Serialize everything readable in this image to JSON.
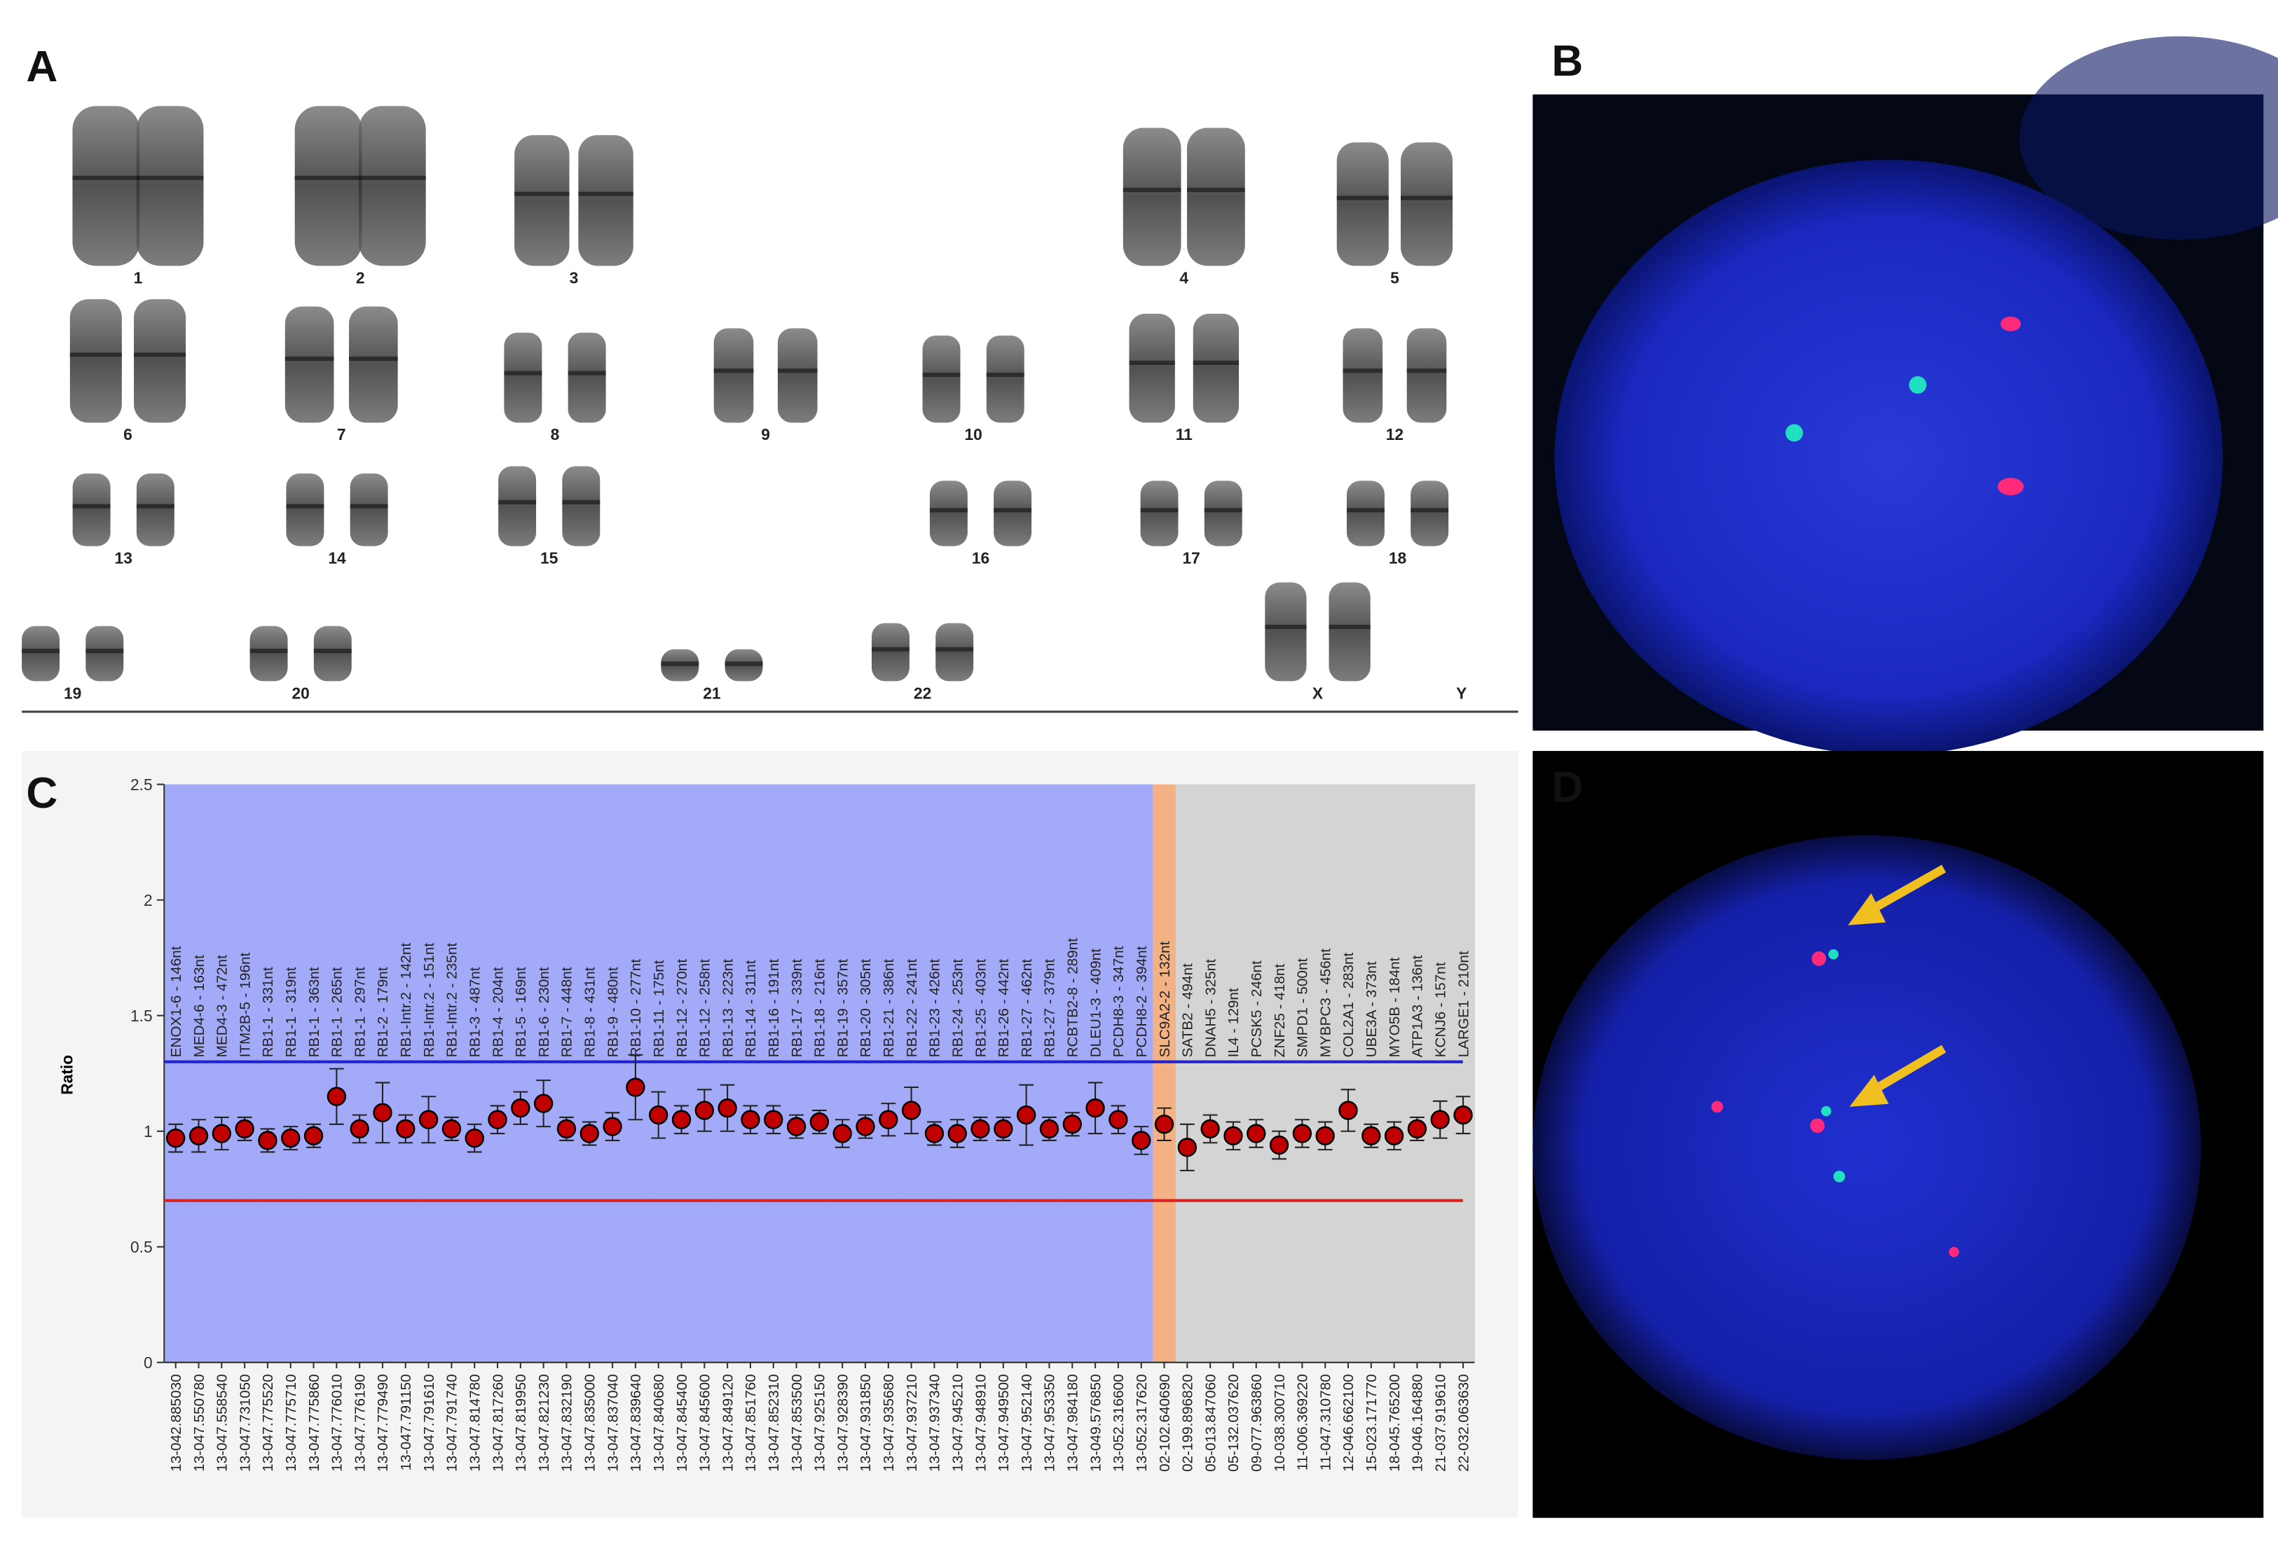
{
  "panels": {
    "labels": [
      "A",
      "B",
      "C",
      "D"
    ]
  },
  "karyotype": {
    "labels": [
      "1",
      "2",
      "3",
      "4",
      "5",
      "6",
      "7",
      "8",
      "9",
      "10",
      "11",
      "12",
      "13",
      "14",
      "15",
      "16",
      "17",
      "18",
      "19",
      "20",
      "21",
      "22",
      "X",
      "Y"
    ]
  },
  "chart_data": {
    "type": "errorbar",
    "ylabel": "Ratio",
    "ylim": [
      0,
      2.5
    ],
    "yticks": [
      0,
      0.5,
      1,
      1.5,
      2,
      2.5
    ],
    "categories": [
      "13-042.885030",
      "13-047.550780",
      "13-047.558540",
      "13-047.731050",
      "13-047.775520",
      "13-047.775710",
      "13-047.775860",
      "13-047.776010",
      "13-047.776190",
      "13-047.779490",
      "13-047.791150",
      "13-047.791610",
      "13-047.791740",
      "13-047.814780",
      "13-047.817260",
      "13-047.819950",
      "13-047.821230",
      "13-047.832190",
      "13-047.835000",
      "13-047.837040",
      "13-047.839640",
      "13-047.840680",
      "13-047.845400",
      "13-047.845600",
      "13-047.849120",
      "13-047.851760",
      "13-047.852310",
      "13-047.853500",
      "13-047.925150",
      "13-047.928390",
      "13-047.931850",
      "13-047.935680",
      "13-047.937210",
      "13-047.937340",
      "13-047.945210",
      "13-047.948910",
      "13-047.949500",
      "13-047.952140",
      "13-047.953350",
      "13-047.984180",
      "13-049.576850",
      "13-052.316600",
      "13-052.317620",
      "02-102.640690",
      "02-199.896820",
      "05-013.847060",
      "05-132.037620",
      "09-077.963860",
      "10-038.300710",
      "11-006.369220",
      "11-047.310780",
      "12-046.662100",
      "15-023.171770",
      "18-045.765200",
      "19-046.164880",
      "21-037.919610",
      "22-032.063630"
    ],
    "probes": [
      "ENOX1-6 - 146nt",
      "MED4-6 - 163nt",
      "MED4-3 - 472nt",
      "ITM2B-5 - 196nt",
      "RB1-1 - 331nt",
      "RB1-1 - 319nt",
      "RB1-1 - 363nt",
      "RB1-1 - 265nt",
      "RB1-1 - 297nt",
      "RB1-2 - 179nt",
      "RB1-Intr.2 - 142nt",
      "RB1-Intr.2 - 151nt",
      "RB1-Intr.2 - 235nt",
      "RB1-3 - 487nt",
      "RB1-4 - 204nt",
      "RB1-5 - 169nt",
      "RB1-6 - 230nt",
      "RB1-7 - 448nt",
      "RB1-8 - 431nt",
      "RB1-9 - 480nt",
      "RB1-10 - 277nt",
      "RB1-11 - 175nt",
      "RB1-12 - 270nt",
      "RB1-12 - 258nt",
      "RB1-13 - 223nt",
      "RB1-14 - 311nt",
      "RB1-16 - 191nt",
      "RB1-17 - 339nt",
      "RB1-18 - 216nt",
      "RB1-19 - 357nt",
      "RB1-20 - 305nt",
      "RB1-21 - 386nt",
      "RB1-22 - 241nt",
      "RB1-23 - 426nt",
      "RB1-24 - 253nt",
      "RB1-25 - 403nt",
      "RB1-26 - 442nt",
      "RB1-27 - 462nt",
      "RB1-27 - 379nt",
      "RCBTB2-8 - 289nt",
      "DLEU1-3 - 409nt",
      "PCDH8-3 - 347nt",
      "PCDH8-2 - 394nt",
      "SLC9A2-2 - 132nt",
      "SATB2 - 494nt",
      "DNAH5 - 325nt",
      "IL4 - 129nt",
      "PCSK5 - 246nt",
      "ZNF25 - 418nt",
      "SMPD1 - 500nt",
      "MYBPC3 - 456nt",
      "COL2A1 - 283nt",
      "UBE3A - 373nt",
      "MYO5B - 184nt",
      "ATP1A3 - 136nt",
      "KCNJ6 - 157nt",
      "LARGE1 - 210nt"
    ],
    "values": [
      0.97,
      0.98,
      0.99,
      1.01,
      0.96,
      0.97,
      0.98,
      1.15,
      1.01,
      1.08,
      1.01,
      1.05,
      1.01,
      0.97,
      1.05,
      1.1,
      1.12,
      1.01,
      0.99,
      1.02,
      1.19,
      1.07,
      1.05,
      1.09,
      1.1,
      1.05,
      1.05,
      1.02,
      1.04,
      0.99,
      1.02,
      1.05,
      1.09,
      0.99,
      0.99,
      1.01,
      1.01,
      1.07,
      1.01,
      1.03,
      1.1,
      1.05,
      0.96,
      1.03,
      0.93,
      1.01,
      0.98,
      0.99,
      0.94,
      0.99,
      0.98,
      1.09,
      0.98,
      0.98,
      1.01,
      1.05,
      1.07
    ],
    "errors": [
      0.06,
      0.07,
      0.07,
      0.05,
      0.05,
      0.05,
      0.05,
      0.12,
      0.06,
      0.13,
      0.06,
      0.1,
      0.05,
      0.06,
      0.06,
      0.07,
      0.1,
      0.05,
      0.05,
      0.06,
      0.14,
      0.1,
      0.06,
      0.09,
      0.1,
      0.06,
      0.06,
      0.05,
      0.05,
      0.06,
      0.05,
      0.07,
      0.1,
      0.05,
      0.06,
      0.05,
      0.05,
      0.13,
      0.05,
      0.05,
      0.11,
      0.06,
      0.06,
      0.07,
      0.1,
      0.06,
      0.06,
      0.06,
      0.06,
      0.06,
      0.06,
      0.09,
      0.05,
      0.06,
      0.05,
      0.08,
      0.08
    ],
    "point_color": "#c00000",
    "thresholds": [
      {
        "value": 1.3,
        "color": "#2222cc"
      },
      {
        "value": 0.7,
        "color": "#dd2222"
      }
    ],
    "background_colors": [
      "#a3aaf7",
      "#a3aaf7",
      "#a3aaf7",
      "#a3aaf7",
      "#a3aaf7",
      "#a3aaf7",
      "#a3aaf7",
      "#a3aaf7",
      "#a3aaf7",
      "#a3aaf7",
      "#a3aaf7",
      "#a3aaf7",
      "#a3aaf7",
      "#a3aaf7",
      "#a3aaf7",
      "#a3aaf7",
      "#a3aaf7",
      "#a3aaf7",
      "#a3aaf7",
      "#a3aaf7",
      "#a3aaf7",
      "#a3aaf7",
      "#a3aaf7",
      "#a3aaf7",
      "#a3aaf7",
      "#a3aaf7",
      "#a3aaf7",
      "#a3aaf7",
      "#a3aaf7",
      "#a3aaf7",
      "#a3aaf7",
      "#a3aaf7",
      "#a3aaf7",
      "#a3aaf7",
      "#a3aaf7",
      "#a3aaf7",
      "#a3aaf7",
      "#a3aaf7",
      "#a3aaf7",
      "#a3aaf7",
      "#a3aaf7",
      "#a3aaf7",
      "#a3aaf7",
      "#f4b183",
      "#d4d4d4",
      "#d4d4d4",
      "#d4d4d4",
      "#d4d4d4",
      "#d4d4d4",
      "#d4d4d4",
      "#d4d4d4",
      "#d4d4d4",
      "#d4d4d4",
      "#d4d4d4",
      "#d4d4d4",
      "#d4d4d4",
      "#d4d4d4"
    ]
  }
}
